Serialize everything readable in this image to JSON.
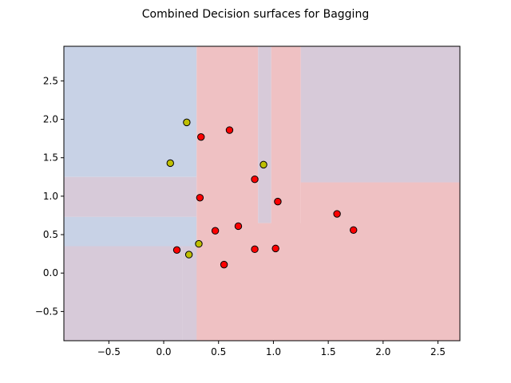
{
  "chart_data": {
    "type": "scatter",
    "title": "Combined Decision surfaces for Bagging",
    "xlabel": "",
    "ylabel": "",
    "xlim": [
      -0.91,
      2.7
    ],
    "ylim": [
      -0.88,
      2.95
    ],
    "xticks": [
      -0.5,
      0.0,
      0.5,
      1.0,
      1.5,
      2.0,
      2.5
    ],
    "xtick_labels": [
      "−0.5",
      "0.0",
      "0.5",
      "1.0",
      "1.5",
      "2.0",
      "2.5"
    ],
    "yticks": [
      -0.5,
      0.0,
      0.5,
      1.0,
      1.5,
      2.0,
      2.5
    ],
    "ytick_labels": [
      "−0.5",
      "0.0",
      "0.5",
      "1.0",
      "1.5",
      "2.0",
      "2.5"
    ],
    "grid": false,
    "class_colors": {
      "class_0": "#bfbf00",
      "class_1": "#ff0000"
    },
    "surface_colors": {
      "class_0": "#c8d2e6",
      "class_1": "#efc1c3",
      "mixed": "#d7cad9"
    },
    "decision_regions": [
      {
        "x": [
          -0.91,
          0.3
        ],
        "y": [
          1.25,
          2.95
        ],
        "label": "class_0"
      },
      {
        "x": [
          -0.91,
          0.3
        ],
        "y": [
          0.73,
          1.25
        ],
        "label": "mixed"
      },
      {
        "x": [
          -0.91,
          0.3
        ],
        "y": [
          0.35,
          0.73
        ],
        "label": "class_0"
      },
      {
        "x": [
          -0.91,
          0.17
        ],
        "y": [
          -0.88,
          0.35
        ],
        "label": "mixed"
      },
      {
        "x": [
          0.17,
          0.5
        ],
        "y": [
          -0.88,
          0.35
        ],
        "label": "mixed"
      },
      {
        "x": [
          0.3,
          0.86
        ],
        "y": [
          -0.88,
          2.95
        ],
        "label": "class_1"
      },
      {
        "x": [
          0.86,
          0.98
        ],
        "y": [
          0.65,
          2.95
        ],
        "label": "mixed"
      },
      {
        "x": [
          0.98,
          1.25
        ],
        "y": [
          -0.88,
          2.95
        ],
        "label": "class_1"
      },
      {
        "x": [
          1.25,
          2.7
        ],
        "y": [
          1.18,
          2.95
        ],
        "label": "mixed"
      },
      {
        "x": [
          1.25,
          2.7
        ],
        "y": [
          -0.88,
          1.18
        ],
        "label": "class_1"
      },
      {
        "x": [
          0.5,
          2.7
        ],
        "y": [
          -0.88,
          0.65
        ],
        "label": "class_1"
      }
    ],
    "series": [
      {
        "label": "class_0",
        "x": [
          0.21,
          0.06,
          0.91,
          0.32,
          0.23
        ],
        "y": [
          1.96,
          1.43,
          1.41,
          0.38,
          0.24
        ]
      },
      {
        "label": "class_1",
        "x": [
          0.6,
          0.34,
          0.83,
          0.33,
          1.04,
          0.47,
          0.68,
          1.58,
          1.73,
          0.12,
          0.83,
          1.02,
          0.55
        ],
        "y": [
          1.86,
          1.77,
          1.22,
          0.98,
          0.93,
          0.55,
          0.61,
          0.77,
          0.56,
          0.3,
          0.31,
          0.32,
          0.11
        ]
      }
    ]
  }
}
